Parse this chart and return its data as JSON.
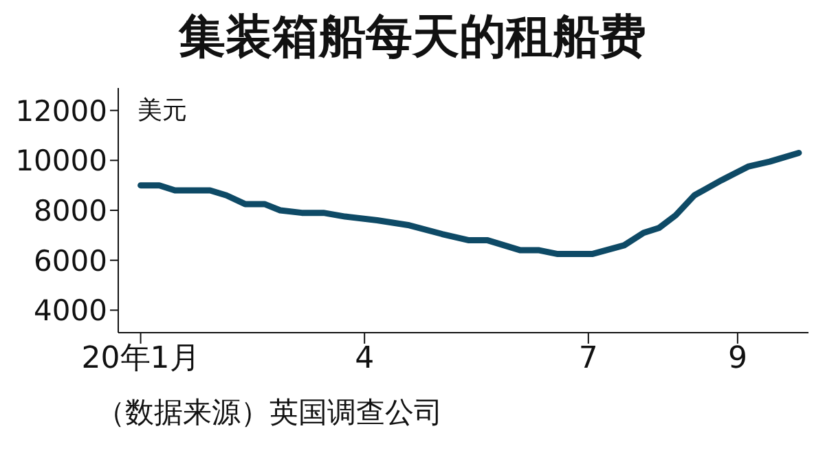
{
  "chart_data": {
    "type": "line",
    "title": "集装箱船每天的租船费",
    "ylabel": "美元",
    "annotations": [
      "（数据来源）英国调查公司"
    ],
    "x": [
      1.0,
      1.25,
      1.46,
      1.93,
      2.15,
      2.4,
      2.66,
      2.87,
      3.16,
      3.45,
      3.74,
      4.17,
      4.6,
      5.04,
      5.4,
      5.65,
      6.09,
      6.34,
      6.59,
      7.05,
      7.48,
      7.74,
      7.95,
      8.17,
      8.42,
      8.78,
      9.14,
      9.43,
      9.82
    ],
    "series": [
      {
        "color": "#0e4a66",
        "values": [
          9000,
          9000,
          8800,
          8800,
          8600,
          8250,
          8250,
          8000,
          7900,
          7900,
          7750,
          7600,
          7400,
          7050,
          6800,
          6800,
          6400,
          6400,
          6250,
          6250,
          6600,
          7100,
          7300,
          7800,
          8600,
          9200,
          9750,
          9950,
          10300
        ]
      }
    ],
    "xlim": [
      0.7,
      9.95
    ],
    "xticks": [
      {
        "value": 1,
        "label": "20年1月"
      },
      4,
      7,
      9
    ],
    "ylim": [
      3100,
      12900
    ],
    "yticks": [
      4000,
      6000,
      8000,
      10000,
      12000
    ],
    "grid": false,
    "legend": false,
    "marker": "none",
    "line_style": "solid"
  }
}
